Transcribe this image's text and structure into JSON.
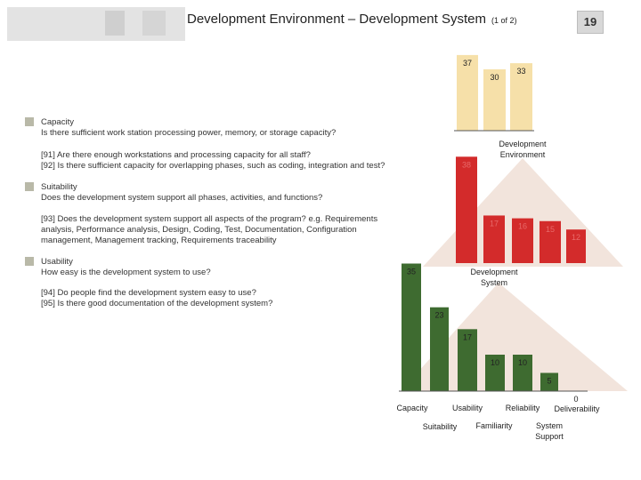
{
  "header": {
    "title": "Development Environment – Development System",
    "page_indicator": "(1 of 2)",
    "slide_number": "19"
  },
  "sections": [
    {
      "heading": "Capacity",
      "question": "Is there sufficient work station processing power, memory, or storage capacity?",
      "items": [
        "[91] Are there enough workstations and processing capacity for all staff?",
        "[92] Is there sufficient capacity for overlapping phases, such as coding, integration and test?"
      ]
    },
    {
      "heading": "Suitability",
      "question": "Does the development system support all phases, activities, and functions?",
      "items": [
        "[93] Does the development system support all aspects of the program? e.g. Requirements",
        "analysis, Performance analysis, Design, Coding, Test, Documentation, Configuration",
        "management, Management tracking, Requirements traceability"
      ]
    },
    {
      "heading": "Usability",
      "question": "How easy is the development system to use?",
      "items": [
        "[94] Do people find the development system easy to use?",
        "[95] Is there good documentation of the development system?"
      ]
    }
  ],
  "chart_data": [
    {
      "type": "bar",
      "label": "Development Environment",
      "values": [
        37,
        30,
        33
      ],
      "color": "#f6e0a9"
    },
    {
      "type": "bar",
      "label": "Development System",
      "values": [
        38,
        17,
        16,
        15,
        12
      ],
      "color": "#d32b2b"
    },
    {
      "type": "bar",
      "categories": [
        "Capacity",
        "Suitability",
        "Usability",
        "Familiarity",
        "Reliability",
        "System Support",
        "Deliverability"
      ],
      "values": [
        35,
        23,
        17,
        10,
        10,
        5,
        0
      ],
      "color": "#3e6b30"
    }
  ],
  "colors": {
    "yellow": "#f6e0a9",
    "red": "#d32b2b",
    "green": "#3e6b30",
    "triangle": "#f2e4dc",
    "bullet": "#b9b9a8"
  }
}
